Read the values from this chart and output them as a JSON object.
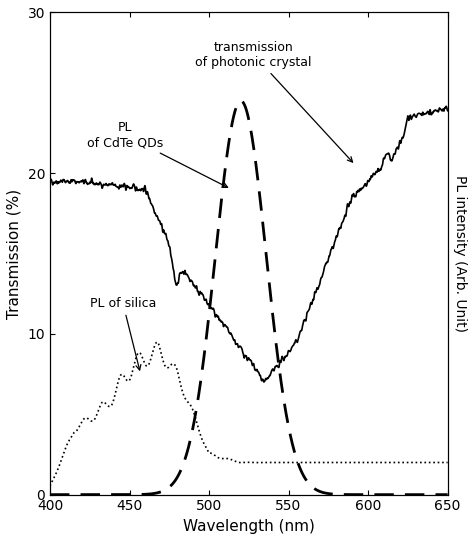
{
  "xlabel": "Wavelength (nm)",
  "ylabel_left": "Transmission (%)",
  "ylabel_right": "PL intensity (Arb. Unit)",
  "xlim": [
    400,
    650
  ],
  "ylim": [
    0,
    30
  ],
  "xticks": [
    400,
    450,
    500,
    550,
    600,
    650
  ],
  "yticks": [
    0,
    10,
    20,
    30
  ],
  "background": "#ffffff",
  "annotation_pc": "transmission\nof photonic crystal",
  "annotation_cdte": "PL\nof CdTe QDs",
  "annotation_silica": "PL of silica",
  "figsize": [
    4.74,
    5.41
  ],
  "dpi": 100
}
